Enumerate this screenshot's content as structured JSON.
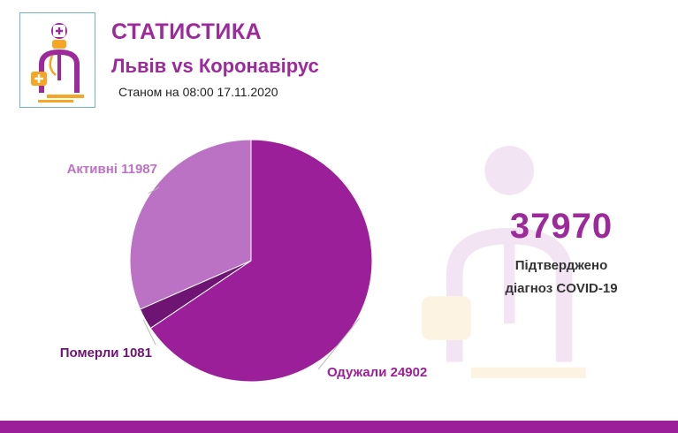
{
  "header": {
    "title": "СТАТИСТИКА",
    "subtitle": "Львів vs Коронавірус",
    "date_line": "Станом на 08:00 17.11.2020"
  },
  "summary": {
    "total": "37970",
    "caption_line1": "Підтверджено",
    "caption_line2": "діагноз COVID-19"
  },
  "colors": {
    "brand": "#9c2a9b",
    "recovered": "#9c1f9a",
    "active": "#bb72c4",
    "deaths": "#6e1472",
    "accent_orange": "#f5a623"
  },
  "chart_data": {
    "type": "pie",
    "slices": [
      {
        "label": "Одужали 24902",
        "value": 24902,
        "color": "#9c1f9a"
      },
      {
        "label": "Померли 1081",
        "value": 1081,
        "color": "#6e1472"
      },
      {
        "label": "Активні 11987",
        "value": 11987,
        "color": "#bb72c4"
      }
    ]
  }
}
